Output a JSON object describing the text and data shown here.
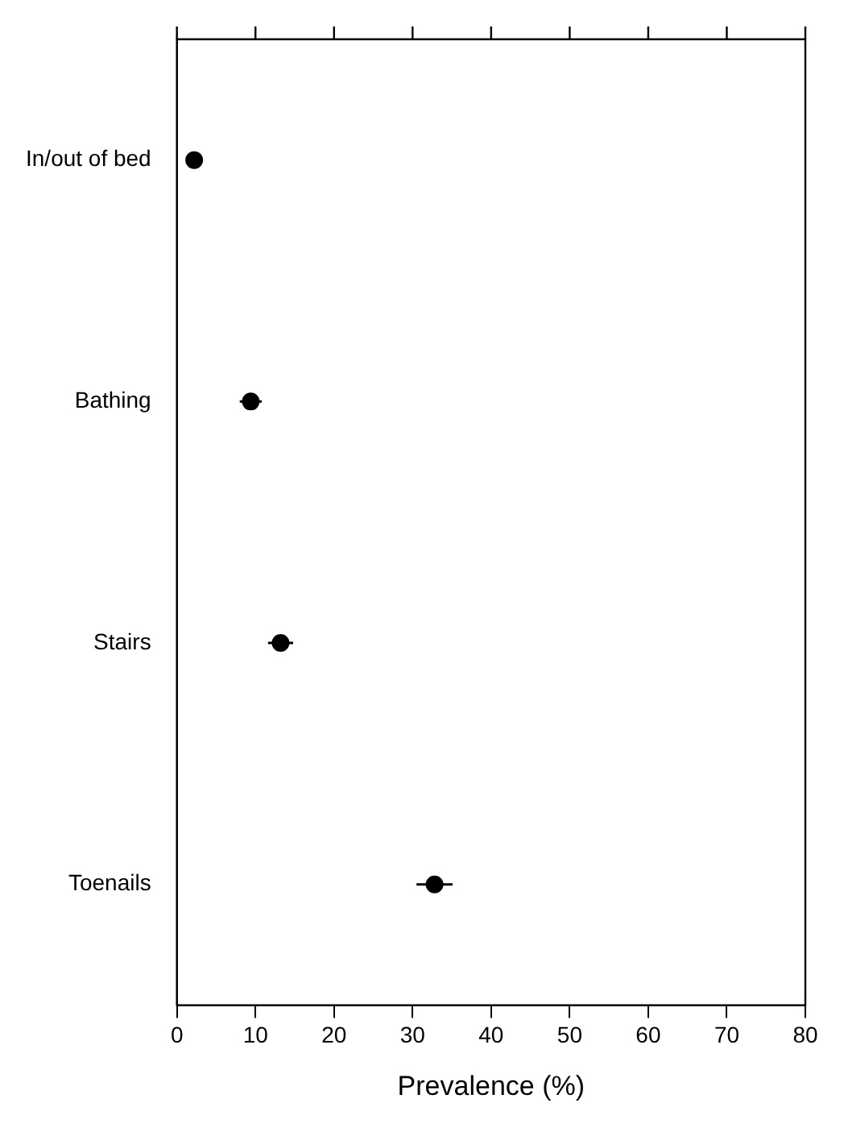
{
  "chart_data": {
    "type": "scatter",
    "orientation": "horizontal",
    "xlabel": "Prevalence (%)",
    "categories": [
      "In/out of bed",
      "Bathing",
      "Stairs",
      "Toenails"
    ],
    "series": [
      {
        "color": "#000000",
        "values": [
          2.2,
          9.4,
          13.2,
          32.8
        ],
        "errors": [
          null,
          1.4,
          1.6,
          2.3
        ]
      }
    ],
    "marker": "circle",
    "xlim": [
      0,
      80
    ],
    "xticks": [
      0,
      10,
      20,
      30,
      40,
      50,
      60,
      70,
      80
    ]
  }
}
